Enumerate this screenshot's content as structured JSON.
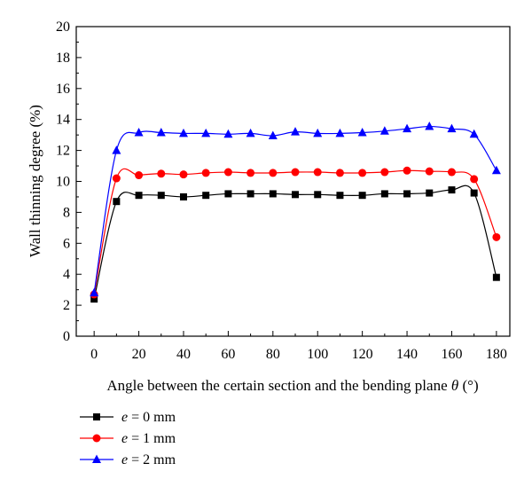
{
  "chart_data": {
    "type": "line",
    "xlabel_main": "Angle between the certain section and the bending plane ",
    "xlabel_symbol": "θ",
    "xlabel_unit": " (°)",
    "ylabel": "Wall thinning degree (%)",
    "xlim": [
      -8,
      186
    ],
    "ylim": [
      0,
      20
    ],
    "xticks": [
      0,
      20,
      40,
      60,
      80,
      100,
      120,
      140,
      160,
      180
    ],
    "yticks": [
      0,
      2,
      4,
      6,
      8,
      10,
      12,
      14,
      16,
      18,
      20
    ],
    "grid": false,
    "legend_position": "bottom-left",
    "x": [
      0,
      10,
      20,
      30,
      40,
      50,
      60,
      70,
      80,
      90,
      100,
      110,
      120,
      130,
      140,
      150,
      160,
      170,
      180
    ],
    "series": [
      {
        "name": "e = 0 mm",
        "legend_var": "e",
        "legend_rest": " = 0 mm",
        "color": "#000000",
        "marker": "square",
        "values": [
          2.4,
          8.7,
          9.1,
          9.1,
          9.0,
          9.1,
          9.2,
          9.2,
          9.2,
          9.15,
          9.15,
          9.1,
          9.1,
          9.2,
          9.2,
          9.25,
          9.45,
          9.25,
          3.8
        ]
      },
      {
        "name": "e = 1 mm",
        "legend_var": "e",
        "legend_rest": " = 1 mm",
        "color": "#ff0000",
        "marker": "circle",
        "values": [
          2.7,
          10.2,
          10.4,
          10.5,
          10.45,
          10.55,
          10.6,
          10.55,
          10.55,
          10.6,
          10.6,
          10.55,
          10.55,
          10.6,
          10.7,
          10.65,
          10.6,
          10.15,
          6.4
        ]
      },
      {
        "name": "e = 2 mm",
        "legend_var": "e",
        "legend_rest": " = 2 mm",
        "color": "#0000ff",
        "marker": "triangle",
        "values": [
          2.8,
          12.0,
          13.15,
          13.15,
          13.1,
          13.1,
          13.05,
          13.1,
          12.95,
          13.2,
          13.1,
          13.1,
          13.15,
          13.25,
          13.4,
          13.55,
          13.4,
          13.05,
          10.7
        ]
      }
    ]
  }
}
